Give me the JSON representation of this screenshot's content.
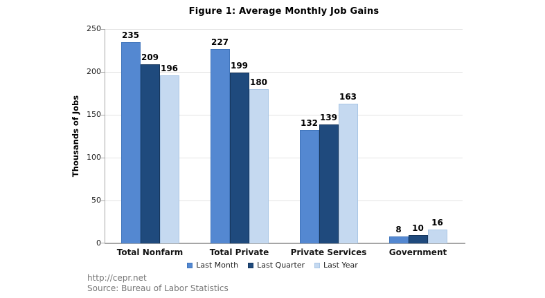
{
  "title": "Figure 1: Average Monthly Job Gains",
  "footer": {
    "line1": "http://cepr.net",
    "line2": "Source: Bureau of Labor Statistics"
  },
  "chart_data": {
    "type": "bar",
    "title": "Figure 1: Average Monthly Job Gains",
    "categories": [
      "Total Nonfarm",
      "Total Private",
      "Private Services",
      "Government"
    ],
    "series": [
      {
        "name": "Last Month",
        "color": "#5488D1",
        "border_color": "#4075BC",
        "values": [
          235,
          227,
          132,
          8
        ]
      },
      {
        "name": "Last Quarter",
        "color": "#1F4A7D",
        "border_color": "#16365C",
        "values": [
          209,
          199,
          139,
          10
        ]
      },
      {
        "name": "Last Year",
        "color": "#C5D9F0",
        "border_color": "#A9C6E5",
        "values": [
          196,
          180,
          163,
          16
        ]
      }
    ],
    "xlabel": "",
    "ylabel": "Thousands of Jobs",
    "ylim": [
      0,
      250
    ],
    "yticks": [
      0,
      50,
      100,
      150,
      200,
      250
    ],
    "grid": true,
    "legend_position": "bottom",
    "colors": {
      "gridline": "#E3E3E3",
      "axis": "#A6A6A6",
      "title": "#000000",
      "value_label": "#000000",
      "footer_text": "#767676"
    }
  }
}
